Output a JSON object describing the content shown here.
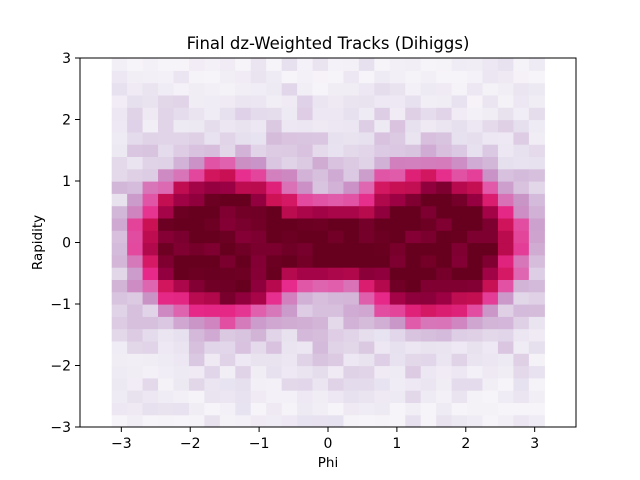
{
  "chart_data": {
    "type": "heatmap",
    "title": "Final dz-Weighted Tracks (Dihiggs)",
    "xlabel": "Phi",
    "ylabel": "Rapidity",
    "xlim": [
      -3.6,
      3.6
    ],
    "ylim": [
      -3,
      3
    ],
    "xticks": [
      -3,
      -2,
      -1,
      0,
      1,
      2,
      3
    ],
    "yticks": [
      -3,
      -2,
      -1,
      0,
      1,
      2,
      3
    ],
    "xtick_labels": [
      "−3",
      "−2",
      "−1",
      "0",
      "1",
      "2",
      "3"
    ],
    "ytick_labels": [
      "−3",
      "−2",
      "−1",
      "0",
      "1",
      "2",
      "3"
    ],
    "colormap": "PuRd",
    "colormap_stops": [
      "#f7f4f9",
      "#e7e1ef",
      "#d4b9da",
      "#c994c7",
      "#df65b0",
      "#e7298a",
      "#ce1256",
      "#980043",
      "#67001f"
    ],
    "grid": false,
    "legend": "none",
    "bins": {
      "x_edges": [
        -3.14,
        3.14
      ],
      "x_count": 28,
      "y_edges": [
        -3,
        3
      ],
      "y_count": 30
    },
    "density_model": {
      "description": "normalized intensity per bin, two lobes centered near phi = -1.5 and phi = 1.5 joined across phi = 0",
      "lobe_centers_phi": [
        -1.5,
        1.5
      ],
      "lobe_half_width_phi": 1.1,
      "lobe_half_height_rapidity": 1.05,
      "bridge_half_height_rapidity": 0.55,
      "saturation_level": 1.0
    }
  }
}
